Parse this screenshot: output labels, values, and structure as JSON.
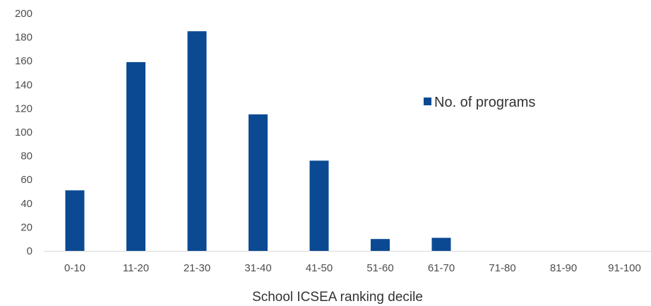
{
  "chart_data": {
    "type": "bar",
    "categories": [
      "0-10",
      "11-20",
      "21-30",
      "31-40",
      "41-50",
      "51-60",
      "61-70",
      "71-80",
      "81-90",
      "91-100"
    ],
    "series": [
      {
        "name": "No. of programs",
        "values": [
          51,
          159,
          185,
          115,
          76,
          10,
          11,
          0,
          0,
          0
        ],
        "color": "#0b4a93"
      }
    ],
    "xlabel": "School ICSEA ranking decile",
    "ylabel": "",
    "ylim": [
      0,
      200
    ],
    "yticks": [
      "0",
      "20",
      "40",
      "60",
      "80",
      "100",
      "120",
      "140",
      "160",
      "180",
      "200"
    ],
    "grid": false,
    "legend": "right"
  }
}
